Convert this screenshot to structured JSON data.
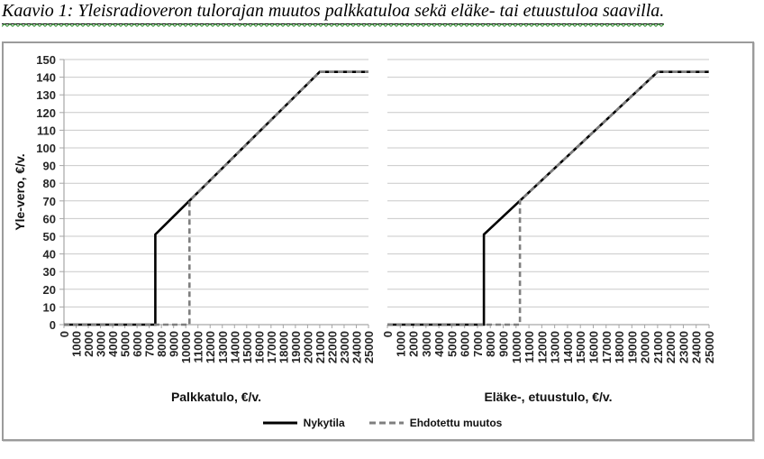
{
  "title": "Kaavio 1: Yleisradioveron tulorajan muutos palkkatuloa sekä eläke- tai etuustuloa saavilla.",
  "colors": {
    "grid": "#c9c9c9",
    "axis": "#a6a6a6",
    "tick_text": "#262626",
    "nykytila_line": "#000000",
    "ehdotettu_line": "#7f7f7f",
    "squiggle_green": "#2f8f2f",
    "frame_border": "#9b9b9b"
  },
  "legend": {
    "position": "bottom-center",
    "items": [
      {
        "label": "Nykytila",
        "style": "solid",
        "color": "#000000"
      },
      {
        "label": "Ehdotettu muutos",
        "style": "dashed",
        "color": "#7f7f7f"
      }
    ]
  },
  "chart_data": [
    {
      "type": "line",
      "title": "",
      "xlabel": "Palkkatulo, €/v.",
      "ylabel": "Yle-vero, €/v.",
      "xlim": [
        0,
        25000
      ],
      "ylim": [
        0,
        150
      ],
      "x_tick_step": 1000,
      "y_tick_step": 10,
      "grid": true,
      "show_y_tick_labels": true,
      "series": [
        {
          "name": "Nykytila",
          "style": "solid",
          "points": [
            [
              0,
              0
            ],
            [
              7500,
              0
            ],
            [
              7500,
              51
            ],
            [
              21000,
              143
            ],
            [
              25000,
              143
            ]
          ]
        },
        {
          "name": "Ehdotettu muutos",
          "style": "dashed",
          "points": [
            [
              0,
              0
            ],
            [
              10300,
              0
            ],
            [
              10300,
              70
            ],
            [
              21000,
              143
            ],
            [
              25000,
              143
            ]
          ]
        }
      ]
    },
    {
      "type": "line",
      "title": "",
      "xlabel": "Eläke-, etuustulo, €/v.",
      "ylabel": "",
      "xlim": [
        0,
        25000
      ],
      "ylim": [
        0,
        150
      ],
      "x_tick_step": 1000,
      "y_tick_step": 10,
      "grid": true,
      "show_y_tick_labels": false,
      "series": [
        {
          "name": "Nykytila",
          "style": "solid",
          "points": [
            [
              0,
              0
            ],
            [
              7500,
              0
            ],
            [
              7500,
              51
            ],
            [
              21000,
              143
            ],
            [
              25000,
              143
            ]
          ]
        },
        {
          "name": "Ehdotettu muutos",
          "style": "dashed",
          "points": [
            [
              0,
              0
            ],
            [
              10300,
              0
            ],
            [
              10300,
              70
            ],
            [
              21000,
              143
            ],
            [
              25000,
              143
            ]
          ]
        }
      ]
    }
  ]
}
